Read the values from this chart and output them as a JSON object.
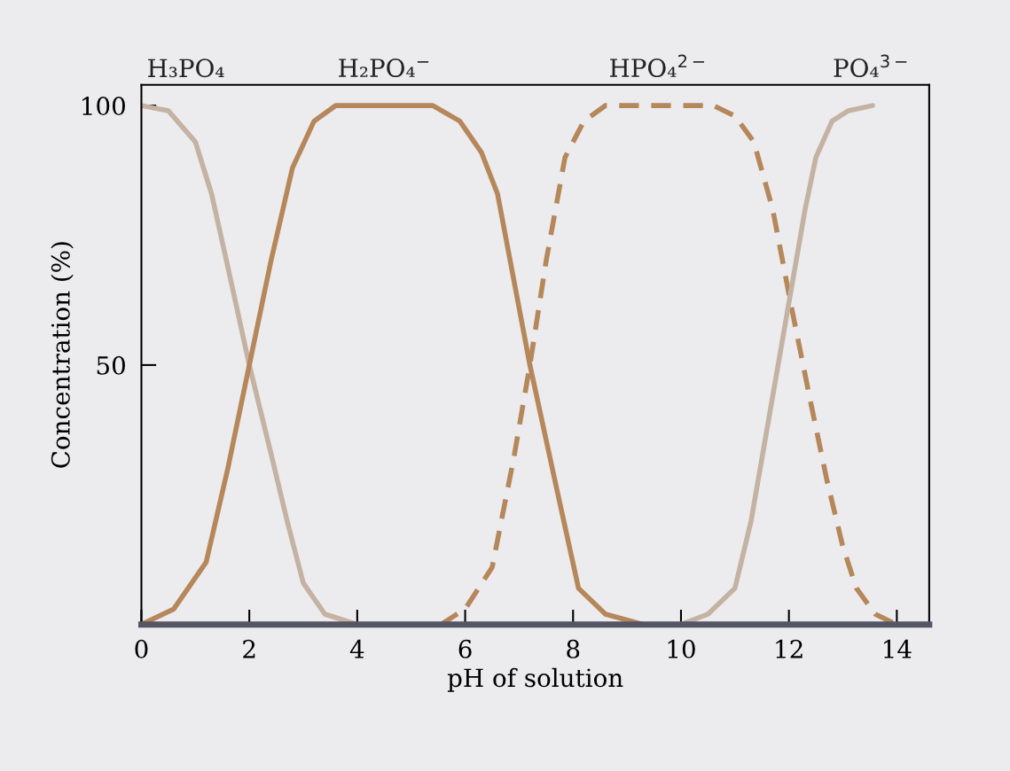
{
  "chart_data": {
    "type": "line",
    "xlabel": "pH of solution",
    "ylabel": "Concentration (%)",
    "xlim": [
      0,
      14.6
    ],
    "ylim": [
      0,
      104
    ],
    "xticks": [
      0,
      2,
      4,
      6,
      8,
      10,
      12,
      14
    ],
    "yticks": [
      50,
      100
    ],
    "grid": false,
    "legend": false,
    "marker": "none",
    "series": [
      {
        "name": "H₃PO₄",
        "color": "#c4b2a2",
        "line_style": "solid",
        "x": [
          0,
          0.5,
          1,
          1.3,
          1.6,
          2,
          2.4,
          2.7,
          3,
          3.4,
          4
        ],
        "values": [
          100,
          99,
          93,
          83,
          69,
          50,
          33,
          20,
          8,
          2,
          0
        ]
      },
      {
        "name": "H₂PO₄$^{−}$",
        "color": "#b5875a",
        "line_style": "solid",
        "x": [
          0,
          0.6,
          1.2,
          1.6,
          2,
          2.4,
          2.8,
          3.2,
          3.6,
          5.4,
          5.9,
          6.3,
          6.6,
          7.2,
          7.7,
          8.1,
          8.6,
          9.3
        ],
        "values": [
          0,
          3,
          12,
          30,
          50,
          70,
          88,
          97,
          100,
          100,
          97,
          91,
          83,
          50,
          26,
          7,
          2,
          0
        ]
      },
      {
        "name": "HPO₄$^{2−}$",
        "color": "#b5875a",
        "line_style": "dashed",
        "x": [
          5.55,
          6,
          6.5,
          6.9,
          7.2,
          7.5,
          7.85,
          8.2,
          8.6,
          10.6,
          11,
          11.35,
          11.7,
          12.05,
          12.4,
          12.7,
          13,
          13.25,
          13.6,
          14
        ],
        "values": [
          0,
          3,
          11,
          32,
          50,
          70,
          90,
          97,
          100,
          100,
          98,
          93,
          80,
          61,
          43,
          28,
          15,
          7,
          2,
          0
        ]
      },
      {
        "name": "PO₄$^{3−}$",
        "color": "#c4b2a2",
        "line_style": "solid",
        "x": [
          10,
          10.5,
          11,
          11.3,
          11.55,
          12,
          12.3,
          12.5,
          12.8,
          13.1,
          13.55
        ],
        "values": [
          0,
          2,
          7,
          20,
          35,
          62,
          80,
          90,
          97,
          99,
          100
        ]
      }
    ]
  }
}
